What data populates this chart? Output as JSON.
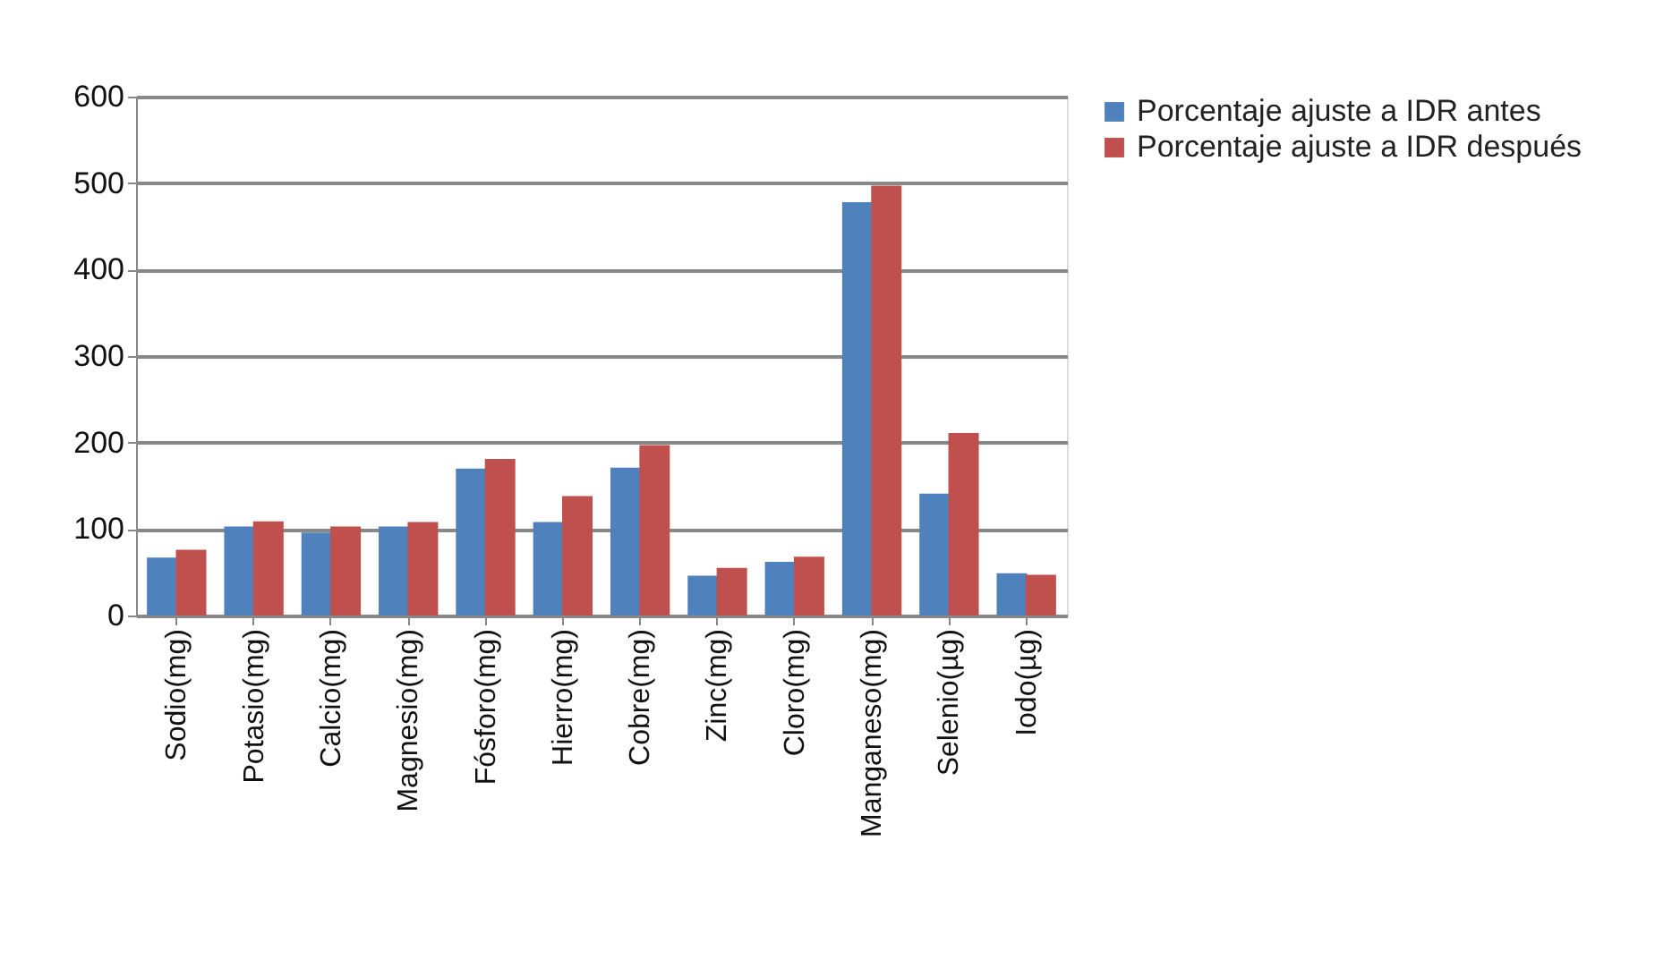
{
  "chart_data": {
    "type": "bar",
    "categories": [
      "Sodio(mg)",
      "Potasio(mg)",
      "Calcio(mg)",
      "Magnesio(mg)",
      "Fósforo(mg)",
      "Hierro(mg)",
      "Cobre(mg)",
      "Zinc(mg)",
      "Cloro(mg)",
      "Manganeso(mg)",
      "Selenio(µg)",
      "Iodo(µg)"
    ],
    "series": [
      {
        "name": "Porcentaje ajuste a IDR antes",
        "color": "#4f81bd",
        "values": [
          67,
          103,
          96,
          103,
          170,
          108,
          171,
          46,
          62,
          478,
          141,
          49
        ]
      },
      {
        "name": "Porcentaje ajuste a IDR después",
        "color": "#c0504d",
        "values": [
          76,
          109,
          103,
          108,
          181,
          138,
          197,
          55,
          68,
          497,
          211,
          47
        ]
      }
    ],
    "ylim": [
      0,
      600
    ],
    "yticks": [
      0,
      100,
      200,
      300,
      400,
      500,
      600
    ],
    "grid": "y",
    "legend": "right"
  }
}
